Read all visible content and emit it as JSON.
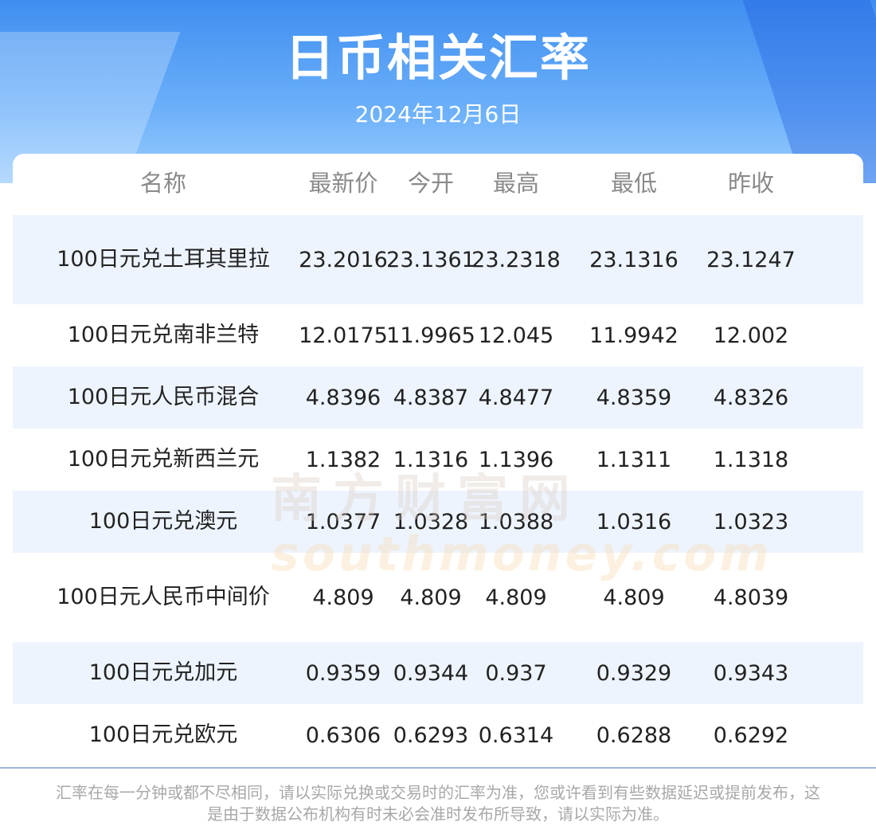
{
  "header": {
    "title": "日币相关汇率",
    "date": "2024年12月6日"
  },
  "table": {
    "columns": [
      "名称",
      "最新价",
      "今开",
      "最高",
      "最低",
      "昨收"
    ],
    "rows": [
      [
        "100日元兑土耳其里拉",
        "23.2016",
        "23.1361",
        "23.2318",
        "23.1316",
        "23.1247"
      ],
      [
        "100日元兑南非兰特",
        "12.0175",
        "11.9965",
        "12.045",
        "11.9942",
        "12.002"
      ],
      [
        "100日元人民币混合",
        "4.8396",
        "4.8387",
        "4.8477",
        "4.8359",
        "4.8326"
      ],
      [
        "100日元兑新西兰元",
        "1.1382",
        "1.1316",
        "1.1396",
        "1.1311",
        "1.1318"
      ],
      [
        "100日元兑澳元",
        "1.0377",
        "1.0328",
        "1.0388",
        "1.0316",
        "1.0323"
      ],
      [
        "100日元人民币中间价",
        "4.809",
        "4.809",
        "4.809",
        "4.809",
        "4.8039"
      ],
      [
        "100日元兑加元",
        "0.9359",
        "0.9344",
        "0.937",
        "0.9329",
        "0.9343"
      ],
      [
        "100日元兑欧元",
        "0.6306",
        "0.6293",
        "0.6314",
        "0.6288",
        "0.6292"
      ]
    ]
  },
  "watermark": [
    "南方财富网",
    "southmoney.com"
  ],
  "footer": {
    "note": "汇率在每一分钟或都不尽相同，请以实际兑换或交易时的汇率为准，您或许看到有些数据延迟或提前发布，这是由于数据公布机构有时未必会准时发布所导致，请以实际为准。"
  }
}
